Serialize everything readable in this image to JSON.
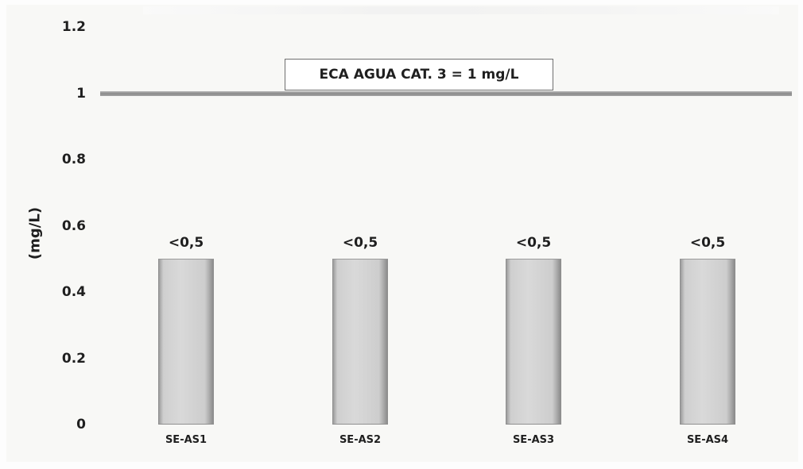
{
  "chart_data": {
    "type": "bar",
    "categories": [
      "SE-AS1",
      "SE-AS2",
      "SE-AS3",
      "SE-AS4"
    ],
    "values": [
      0.5,
      0.5,
      0.5,
      0.5
    ],
    "data_labels": [
      "<0,5",
      "<0,5",
      "<0,5",
      "<0,5"
    ],
    "ylabel": "(mg/L)",
    "ylim": [
      0,
      1.2
    ],
    "yticks": [
      "0",
      "0.2",
      "0.4",
      "0.6",
      "0.8",
      "1",
      "1.2"
    ],
    "reference_line": {
      "value": 1,
      "label": "ECA AGUA CAT. 3 = 1 mg/L"
    },
    "grid": false,
    "colors": {
      "bar": "#cfcfcf",
      "reference_line": "#9a9a9a"
    }
  }
}
